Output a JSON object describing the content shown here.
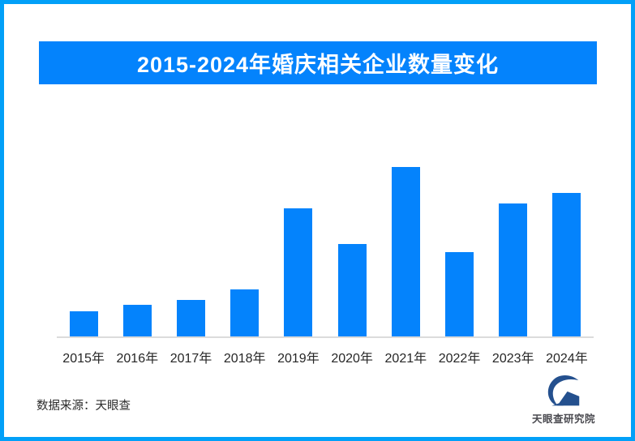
{
  "frame": {
    "border_color": "#02a0f8",
    "background_color": "#ffffff"
  },
  "header": {
    "title": "2015-2024年婚庆相关企业数量变化",
    "banner_color": "#0483fc",
    "text_color": "#ffffff"
  },
  "chart_data": {
    "type": "bar",
    "title": "2015-2024年婚庆相关企业数量变化",
    "categories": [
      "2015年",
      "2016年",
      "2017年",
      "2018年",
      "2019年",
      "2020年",
      "2021年",
      "2022年",
      "2023年",
      "2024年"
    ],
    "values": [
      31,
      39,
      45,
      59,
      159,
      115,
      211,
      105,
      165,
      179
    ],
    "values_note": "relative bar heights; chart displays no numeric axis or data labels",
    "ylim": [
      0,
      230
    ],
    "xlabel": "",
    "ylabel": "",
    "grid": false,
    "legend": false,
    "bar_color": "#0483fc",
    "axis_line_color": "#dcdcdc"
  },
  "footer": {
    "source_text": "数据来源：天眼查",
    "logo_text": "天眼查研究院",
    "logo_color": "#24508e"
  }
}
